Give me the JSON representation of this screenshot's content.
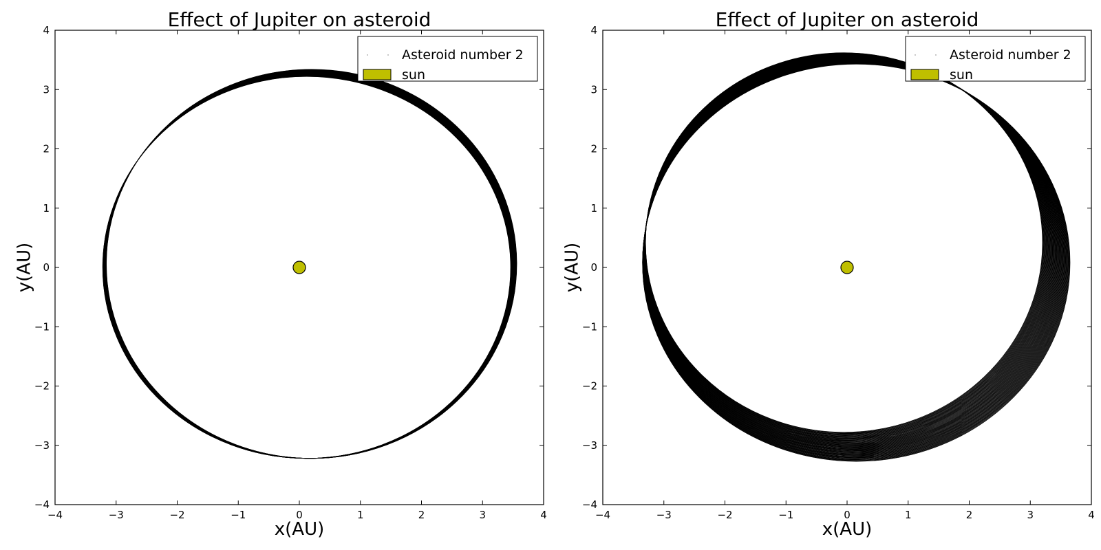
{
  "chart_data": [
    {
      "type": "line",
      "title": "Effect of Jupiter on asteroid",
      "xlabel": "x(AU)",
      "ylabel": "y(AU)",
      "xlim": [
        -4,
        4
      ],
      "ylim": [
        -4,
        4
      ],
      "xticks": [
        -4,
        -3,
        -2,
        -1,
        0,
        1,
        2,
        3,
        4
      ],
      "yticks": [
        -4,
        -3,
        -2,
        -1,
        0,
        1,
        2,
        3,
        4
      ],
      "tick_labels": [
        "−4",
        "−3",
        "−2",
        "−1",
        "0",
        "1",
        "2",
        "3",
        "4"
      ],
      "grid": false,
      "legend_position": "top-right",
      "series": [
        {
          "name": "Asteroid number 2",
          "kind": "orbit",
          "color": "#000000",
          "orbits": 40,
          "center_x": [
            0.12,
            0.2
          ],
          "center_y": [
            0.0,
            0.06
          ],
          "radius_x": [
            3.34,
            3.36
          ],
          "radius_y": [
            3.22,
            3.28
          ]
        },
        {
          "name": "sun",
          "kind": "marker",
          "color": "#bfbf00",
          "x": 0,
          "y": 0
        }
      ]
    },
    {
      "type": "line",
      "title": "Effect of Jupiter on asteroid",
      "xlabel": "x(AU)",
      "ylabel": "y(AU)",
      "xlim": [
        -4,
        4
      ],
      "ylim": [
        -4,
        4
      ],
      "xticks": [
        -4,
        -3,
        -2,
        -1,
        0,
        1,
        2,
        3,
        4
      ],
      "yticks": [
        -4,
        -3,
        -2,
        -1,
        0,
        1,
        2,
        3,
        4
      ],
      "tick_labels": [
        "−4",
        "−3",
        "−2",
        "−1",
        "0",
        "1",
        "2",
        "3",
        "4"
      ],
      "grid": false,
      "legend_position": "top-right",
      "series": [
        {
          "name": "Asteroid number 2",
          "kind": "orbit",
          "color": "#000000",
          "orbits": 60,
          "center_x": [
            -0.05,
            0.15
          ],
          "center_y": [
            0.42,
            0.08
          ],
          "radius_x": [
            3.25,
            3.5
          ],
          "radius_y": [
            3.2,
            3.35
          ]
        },
        {
          "name": "sun",
          "kind": "marker",
          "color": "#bfbf00",
          "x": 0,
          "y": 0
        }
      ]
    }
  ]
}
